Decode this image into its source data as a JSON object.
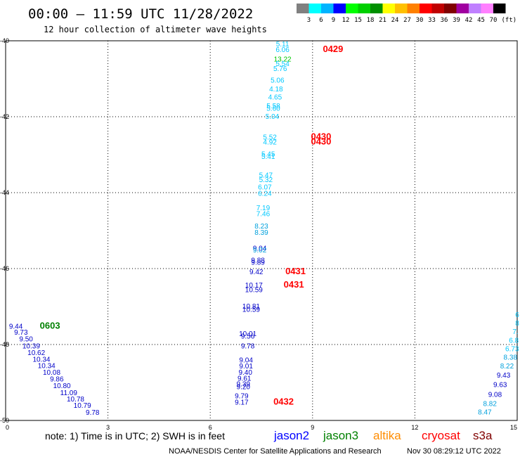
{
  "header": {
    "title": "00:00 – 11:59 UTC 11/28/2022",
    "subtitle": "12 hour collection of altimeter wave heights"
  },
  "legend": {
    "colors": [
      "#808080",
      "#00ffff",
      "#00b4ff",
      "#0000ff",
      "#00ff00",
      "#00d000",
      "#009000",
      "#ffff00",
      "#ffc000",
      "#ff8000",
      "#ff0000",
      "#c00000",
      "#800000",
      "#a000a0",
      "#c080ff",
      "#ff80ff",
      "#000000"
    ],
    "labels": [
      "3",
      "6",
      "9",
      "12",
      "15",
      "18",
      "21",
      "24",
      "27",
      "30",
      "33",
      "36",
      "39",
      "42",
      "45",
      "70"
    ],
    "unit": "(ft)"
  },
  "footer": {
    "note": "note: 1) Time is in UTC; 2) SWH is in feet",
    "satellites": [
      {
        "name": "jason2",
        "color": "#0000ff"
      },
      {
        "name": "jason3",
        "color": "#008000"
      },
      {
        "name": "altika",
        "color": "#ff8c00"
      },
      {
        "name": "cryosat",
        "color": "#ff0000"
      },
      {
        "name": "s3a",
        "color": "#800000"
      }
    ],
    "credit": "NOAA/NESDIS Center for Satellite Applications and Research",
    "timestamp": "Nov 30 08:29:12 UTC 2022"
  },
  "chart_data": {
    "type": "scatter",
    "xlim": [
      0,
      15
    ],
    "ylim": [
      -50,
      -40
    ],
    "xticks": [
      "0",
      "3",
      "6",
      "9",
      "12",
      "15"
    ],
    "yticks": [
      "-40",
      "-42",
      "-44",
      "-46",
      "-48",
      "-50"
    ],
    "grid": true,
    "points": [
      {
        "x": 8.12,
        "y": -40.15,
        "label": "5.11",
        "color": "#00c8ff"
      },
      {
        "x": 8.12,
        "y": -40.3,
        "label": "6.06",
        "color": "#00c8ff"
      },
      {
        "x": 8.12,
        "y": -40.55,
        "label": "13.22",
        "color": "#00c800"
      },
      {
        "x": 8.12,
        "y": -40.67,
        "label": "5.54",
        "color": "#00c8ff"
      },
      {
        "x": 8.05,
        "y": -40.8,
        "label": "5.76",
        "color": "#00c8ff"
      },
      {
        "x": 7.97,
        "y": -41.1,
        "label": "5.06",
        "color": "#00c8ff"
      },
      {
        "x": 7.93,
        "y": -41.33,
        "label": "4.18",
        "color": "#00c8ff"
      },
      {
        "x": 7.9,
        "y": -41.55,
        "label": "4.65",
        "color": "#00c8ff"
      },
      {
        "x": 7.85,
        "y": -41.78,
        "label": "5.58",
        "color": "#00c8ff"
      },
      {
        "x": 7.85,
        "y": -41.84,
        "label": "5.60",
        "color": "#00c8ff"
      },
      {
        "x": 7.82,
        "y": -42.06,
        "label": "5.04",
        "color": "#00c8ff"
      },
      {
        "x": 7.75,
        "y": -42.6,
        "label": "5.52",
        "color": "#00c8ff"
      },
      {
        "x": 7.75,
        "y": -42.73,
        "label": "4.92",
        "color": "#00c8ff"
      },
      {
        "x": 7.7,
        "y": -43.05,
        "label": "5.45",
        "color": "#00c8ff"
      },
      {
        "x": 7.7,
        "y": -43.11,
        "label": "5.41",
        "color": "#00c8ff"
      },
      {
        "x": 7.63,
        "y": -43.6,
        "label": "5.47",
        "color": "#00c8ff"
      },
      {
        "x": 7.63,
        "y": -43.72,
        "label": "5.32",
        "color": "#00c8ff"
      },
      {
        "x": 7.6,
        "y": -43.92,
        "label": "6.07",
        "color": "#00c8ff"
      },
      {
        "x": 7.6,
        "y": -44.08,
        "label": "6.24",
        "color": "#00c8ff"
      },
      {
        "x": 7.55,
        "y": -44.46,
        "label": "7.19",
        "color": "#00c8ff"
      },
      {
        "x": 7.55,
        "y": -44.62,
        "label": "7.46",
        "color": "#00c8ff"
      },
      {
        "x": 7.5,
        "y": -44.94,
        "label": "8.23",
        "color": "#00a0dc"
      },
      {
        "x": 7.5,
        "y": -45.11,
        "label": "8.39",
        "color": "#00a0dc"
      },
      {
        "x": 7.45,
        "y": -45.53,
        "label": "9.04",
        "color": "#0000c8"
      },
      {
        "x": 7.45,
        "y": -45.57,
        "label": "9.02",
        "color": "#00a0dc"
      },
      {
        "x": 7.4,
        "y": -45.84,
        "label": "9.88",
        "color": "#0000c8"
      },
      {
        "x": 7.4,
        "y": -45.9,
        "label": "9.89",
        "color": "#0000c8"
      },
      {
        "x": 7.35,
        "y": -46.15,
        "label": "9.42",
        "color": "#0000c8"
      },
      {
        "x": 7.28,
        "y": -46.5,
        "label": "10.17",
        "color": "#0000c8"
      },
      {
        "x": 7.28,
        "y": -46.62,
        "label": "10.59",
        "color": "#0000c8"
      },
      {
        "x": 7.2,
        "y": -47.06,
        "label": "10.81",
        "color": "#0000c8"
      },
      {
        "x": 7.2,
        "y": -47.14,
        "label": "10.59",
        "color": "#0000c8"
      },
      {
        "x": 7.1,
        "y": -47.78,
        "label": "10.01",
        "color": "#0000c8"
      },
      {
        "x": 7.1,
        "y": -47.84,
        "label": "9.56",
        "color": "#0000c8"
      },
      {
        "x": 7.1,
        "y": -48.1,
        "label": "9.78",
        "color": "#0000c8"
      },
      {
        "x": 7.05,
        "y": -48.47,
        "label": "9.04",
        "color": "#0000c8"
      },
      {
        "x": 7.05,
        "y": -48.63,
        "label": "9.01",
        "color": "#0000c8"
      },
      {
        "x": 7.03,
        "y": -48.8,
        "label": "9.40",
        "color": "#0000c8"
      },
      {
        "x": 7.0,
        "y": -48.95,
        "label": "9.61",
        "color": "#0000c8"
      },
      {
        "x": 6.97,
        "y": -49.1,
        "label": "9.39",
        "color": "#0000c8"
      },
      {
        "x": 6.97,
        "y": -49.18,
        "label": "9.20",
        "color": "#0000c8"
      },
      {
        "x": 6.92,
        "y": -49.42,
        "label": "9.79",
        "color": "#0000c8"
      },
      {
        "x": 6.92,
        "y": -49.58,
        "label": "9.17",
        "color": "#0000c8"
      },
      {
        "x": 0.3,
        "y": -47.58,
        "label": "9.44",
        "color": "#0000c8"
      },
      {
        "x": 0.45,
        "y": -47.74,
        "label": "9.73",
        "color": "#0000c8"
      },
      {
        "x": 0.6,
        "y": -47.92,
        "label": "9.50",
        "color": "#0000c8"
      },
      {
        "x": 0.75,
        "y": -48.1,
        "label": "10.39",
        "color": "#0000c8"
      },
      {
        "x": 0.9,
        "y": -48.28,
        "label": "10.62",
        "color": "#0000c8"
      },
      {
        "x": 1.05,
        "y": -48.45,
        "label": "10.34",
        "color": "#0000c8"
      },
      {
        "x": 1.2,
        "y": -48.62,
        "label": "10.34",
        "color": "#0000c8"
      },
      {
        "x": 1.35,
        "y": -48.8,
        "label": "10.08",
        "color": "#0000c8"
      },
      {
        "x": 1.5,
        "y": -48.97,
        "label": "9.86",
        "color": "#0000c8"
      },
      {
        "x": 1.65,
        "y": -49.15,
        "label": "10.80",
        "color": "#0000c8"
      },
      {
        "x": 1.85,
        "y": -49.33,
        "label": "11.09",
        "color": "#0000c8"
      },
      {
        "x": 2.05,
        "y": -49.5,
        "label": "10.78",
        "color": "#0000c8"
      },
      {
        "x": 2.25,
        "y": -49.67,
        "label": "10.79",
        "color": "#0000c8"
      },
      {
        "x": 2.55,
        "y": -49.85,
        "label": "9.78",
        "color": "#0000c8"
      },
      {
        "x": 15.0,
        "y": -47.28,
        "label": "6",
        "color": "#00c8ff"
      },
      {
        "x": 15.0,
        "y": -47.5,
        "label": "8",
        "color": "#00c8ff"
      },
      {
        "x": 14.95,
        "y": -47.72,
        "label": "7.",
        "color": "#00c8ff"
      },
      {
        "x": 14.9,
        "y": -47.95,
        "label": "6.8",
        "color": "#00c8ff"
      },
      {
        "x": 14.85,
        "y": -48.18,
        "label": "6.73",
        "color": "#00c8ff"
      },
      {
        "x": 14.8,
        "y": -48.4,
        "label": "8.38",
        "color": "#00a0dc"
      },
      {
        "x": 14.7,
        "y": -48.63,
        "label": "8.22",
        "color": "#00a0dc"
      },
      {
        "x": 14.6,
        "y": -48.87,
        "label": "9.43",
        "color": "#0000c8"
      },
      {
        "x": 14.5,
        "y": -49.12,
        "label": "9.63",
        "color": "#0000c8"
      },
      {
        "x": 14.35,
        "y": -49.38,
        "label": "9.08",
        "color": "#0000c8"
      },
      {
        "x": 14.2,
        "y": -49.62,
        "label": "8.82",
        "color": "#00a0dc"
      },
      {
        "x": 14.05,
        "y": -49.84,
        "label": "8.47",
        "color": "#00a0dc"
      }
    ],
    "annotations": [
      {
        "x": 9.6,
        "y": -40.3,
        "label": "0429",
        "color": "#ff0000"
      },
      {
        "x": 9.25,
        "y": -42.6,
        "label": "0430",
        "color": "#ff0000"
      },
      {
        "x": 9.25,
        "y": -42.73,
        "label": "0430",
        "color": "#ff0000"
      },
      {
        "x": 8.5,
        "y": -46.15,
        "label": "0431",
        "color": "#ff0000"
      },
      {
        "x": 8.45,
        "y": -46.5,
        "label": "0431",
        "color": "#ff0000"
      },
      {
        "x": 8.15,
        "y": -49.58,
        "label": "0432",
        "color": "#ff0000"
      },
      {
        "x": 1.3,
        "y": -47.58,
        "label": "0603",
        "color": "#008000"
      }
    ]
  }
}
